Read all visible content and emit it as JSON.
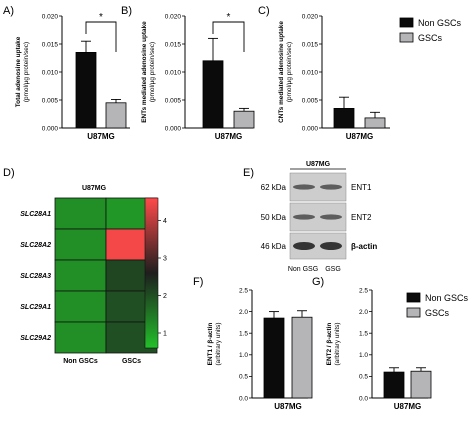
{
  "colors": {
    "non_gscs": "#0b0b0b",
    "gscs": "#b5b5b8",
    "heat_low": "#22c02a",
    "heat_high": "#ff4a4a",
    "blot_bg": "#cdcdcd"
  },
  "legend_top": [
    {
      "label": "Non GSCs",
      "color": "#0b0b0b"
    },
    {
      "label": "GSCs",
      "color": "#b5b5b8"
    }
  ],
  "legend_bottom": [
    {
      "label": "Non GSCs",
      "color": "#0b0b0b"
    },
    {
      "label": "GSCs",
      "color": "#b5b5b8"
    }
  ],
  "chart_data": [
    {
      "panel": "A)",
      "type": "bar",
      "categories": [
        "U87MG"
      ],
      "series": [
        {
          "name": "Non GSCs",
          "values": [
            0.0135
          ],
          "errors": [
            0.002
          ]
        },
        {
          "name": "GSCs",
          "values": [
            0.0045
          ],
          "errors": [
            0.0006
          ]
        }
      ],
      "ylabel": "Total adenosine uptake",
      "ylabel2": "(pmol/μg protein/sec)",
      "ylim": [
        0,
        0.02
      ],
      "yticks": [
        0,
        0.005,
        0.01,
        0.015,
        0.02
      ],
      "yticklabels": [
        "0.000",
        "0.005",
        "0.010",
        "0.015",
        "0.020"
      ],
      "significance": "*"
    },
    {
      "panel": "B)",
      "type": "bar",
      "categories": [
        "U87MG"
      ],
      "series": [
        {
          "name": "Non GSCs",
          "values": [
            0.012
          ],
          "errors": [
            0.004
          ]
        },
        {
          "name": "GSCs",
          "values": [
            0.003
          ],
          "errors": [
            0.0005
          ]
        }
      ],
      "ylabel": "ENTs mediated adenosine uptake",
      "ylabel2": "(pmol/μg protein/sec)",
      "ylim": [
        0,
        0.02
      ],
      "yticks": [
        0,
        0.005,
        0.01,
        0.015,
        0.02
      ],
      "yticklabels": [
        "0.000",
        "0.005",
        "0.010",
        "0.015",
        "0.020"
      ],
      "significance": "*"
    },
    {
      "panel": "C)",
      "type": "bar",
      "categories": [
        "U87MG"
      ],
      "series": [
        {
          "name": "Non GSCs",
          "values": [
            0.0035
          ],
          "errors": [
            0.002
          ]
        },
        {
          "name": "GSCs",
          "values": [
            0.0018
          ],
          "errors": [
            0.001
          ]
        }
      ],
      "ylabel": "CNTs mediated adenosine uptake",
      "ylabel2": "(pmol/μg protein/sec)",
      "ylim": [
        0,
        0.02
      ],
      "yticks": [
        0,
        0.005,
        0.01,
        0.015,
        0.02
      ],
      "yticklabels": [
        "0.000",
        "0.005",
        "0.010",
        "0.015",
        "0.020"
      ],
      "significance": ""
    },
    {
      "panel": "D)",
      "type": "heatmap",
      "title": "U87MG",
      "rows": [
        "SLC28A1",
        "SLC28A2",
        "SLC28A3",
        "SLC29A1",
        "SLC29A2"
      ],
      "columns": [
        "Non  GSCs",
        "GSCs"
      ],
      "values": [
        [
          1.2,
          1.1
        ],
        [
          1.2,
          4.5
        ],
        [
          1.2,
          2.1
        ],
        [
          1.2,
          2.0
        ],
        [
          1.2,
          2.0
        ]
      ],
      "colorbar_range": [
        0.6,
        4.6
      ],
      "colorbar_ticks": [
        1,
        2,
        3,
        4
      ]
    },
    {
      "panel": "F)",
      "type": "bar",
      "categories": [
        "U87MG"
      ],
      "series": [
        {
          "name": "Non GSCs",
          "values": [
            1.85
          ],
          "errors": [
            0.15
          ]
        },
        {
          "name": "GSCs",
          "values": [
            1.87
          ],
          "errors": [
            0.15
          ]
        }
      ],
      "ylabel": "ENT1 / β-actin",
      "ylabel2": "(arbitrary units)",
      "ylim": [
        0,
        2.5
      ],
      "yticks": [
        0,
        0.5,
        1,
        1.5,
        2,
        2.5
      ],
      "yticklabels": [
        "0.0",
        "0.5",
        "1.0",
        "1.5",
        "2.0",
        "2.5"
      ],
      "significance": ""
    },
    {
      "panel": "G)",
      "type": "bar",
      "categories": [
        "U87MG"
      ],
      "series": [
        {
          "name": "Non GSCs",
          "values": [
            0.6
          ],
          "errors": [
            0.1
          ]
        },
        {
          "name": "GSCs",
          "values": [
            0.62
          ],
          "errors": [
            0.08
          ]
        }
      ],
      "ylabel": "ENT2 / β-actin",
      "ylabel2": "(arbitrary units)",
      "ylim": [
        0,
        2.5
      ],
      "yticks": [
        0,
        0.5,
        1,
        1.5,
        2,
        2.5
      ],
      "yticklabels": [
        "0.0",
        "0.5",
        "1.0",
        "1.5",
        "2.0",
        "2.5"
      ],
      "significance": ""
    }
  ],
  "blot": {
    "panel": "E)",
    "title": "U87MG",
    "rows": [
      {
        "kda": "62 kDa",
        "protein": "ENT1"
      },
      {
        "kda": "50 kDa",
        "protein": "ENT2"
      },
      {
        "kda": "46 kDa",
        "protein": "β-actin"
      }
    ],
    "lanes": [
      "Non GSG",
      "GSG"
    ]
  }
}
